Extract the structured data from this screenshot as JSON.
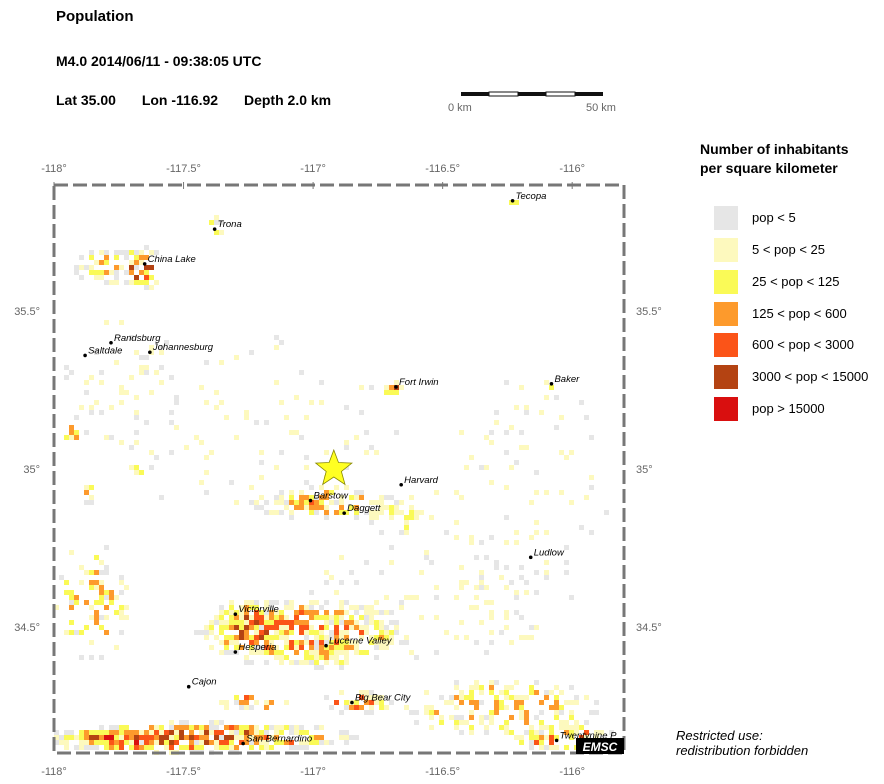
{
  "header": {
    "title": "Population",
    "event": "M4.0  2014/06/11 - 09:38:05 UTC",
    "lat": "Lat 35.00",
    "lon": "Lon -116.92",
    "depth": "Depth  2.0 km"
  },
  "scale": {
    "left": "0 km",
    "right": "50 km"
  },
  "map": {
    "lon_range": [
      -118.0,
      -115.8
    ],
    "lat_range": [
      34.1,
      35.9
    ],
    "epicenter": {
      "lat": 35.0,
      "lon": -116.92
    },
    "top_ticks": [
      "-118°",
      "-117.5°",
      "-117°",
      "-116.5°",
      "-116°"
    ],
    "bottom_ticks": [
      "-118°",
      "-117.5°",
      "-117°",
      "-116.5°",
      "-116°"
    ],
    "left_ticks": [
      "35.5°",
      "35°",
      "34.5°"
    ],
    "right_ticks": [
      "35.5°",
      "35°",
      "34.5°"
    ],
    "logo": "EMSC"
  },
  "cities": [
    {
      "name": "Tecopa",
      "lon": -116.23,
      "lat": 35.85
    },
    {
      "name": "Trona",
      "lon": -117.38,
      "lat": 35.76
    },
    {
      "name": "China Lake",
      "lon": -117.65,
      "lat": 35.65
    },
    {
      "name": "Randsburg",
      "lon": -117.78,
      "lat": 35.4
    },
    {
      "name": "Saltdale",
      "lon": -117.88,
      "lat": 35.36
    },
    {
      "name": "Johannesburg",
      "lon": -117.63,
      "lat": 35.37
    },
    {
      "name": "Fort Irwin",
      "lon": -116.68,
      "lat": 35.26
    },
    {
      "name": "Baker",
      "lon": -116.08,
      "lat": 35.27
    },
    {
      "name": "Harvard",
      "lon": -116.66,
      "lat": 34.95
    },
    {
      "name": "Barstow",
      "lon": -117.01,
      "lat": 34.9
    },
    {
      "name": "Daggett",
      "lon": -116.88,
      "lat": 34.86
    },
    {
      "name": "Ludlow",
      "lon": -116.16,
      "lat": 34.72
    },
    {
      "name": "Victorville",
      "lon": -117.3,
      "lat": 34.54
    },
    {
      "name": "Hesperia",
      "lon": -117.3,
      "lat": 34.42
    },
    {
      "name": "Lucerne Valley",
      "lon": -116.95,
      "lat": 34.44
    },
    {
      "name": "Cajon",
      "lon": -117.48,
      "lat": 34.31
    },
    {
      "name": "Big Bear City",
      "lon": -116.85,
      "lat": 34.26
    },
    {
      "name": "San Bernardino",
      "lon": -117.27,
      "lat": 34.13
    },
    {
      "name": "Twentynine P",
      "lon": -116.06,
      "lat": 34.14
    }
  ],
  "legend": {
    "title_line1": "Number of inhabitants",
    "title_line2": "per square kilometer",
    "items": [
      {
        "label": "pop < 5",
        "color": "#e6e6e6"
      },
      {
        "label": "5 < pop < 25",
        "color": "#fdf9be"
      },
      {
        "label": "25 < pop < 125",
        "color": "#fafa57"
      },
      {
        "label": "125 < pop < 600",
        "color": "#fd9a2c"
      },
      {
        "label": "600 < pop < 3000",
        "color": "#fb5418"
      },
      {
        "label": "3000 < pop < 15000",
        "color": "#b44312"
      },
      {
        "label": "pop > 15000",
        "color": "#d90f0f"
      }
    ]
  },
  "footer": {
    "restricted_line1": "Restricted use:",
    "restricted_line2": "redistribution forbidden"
  }
}
